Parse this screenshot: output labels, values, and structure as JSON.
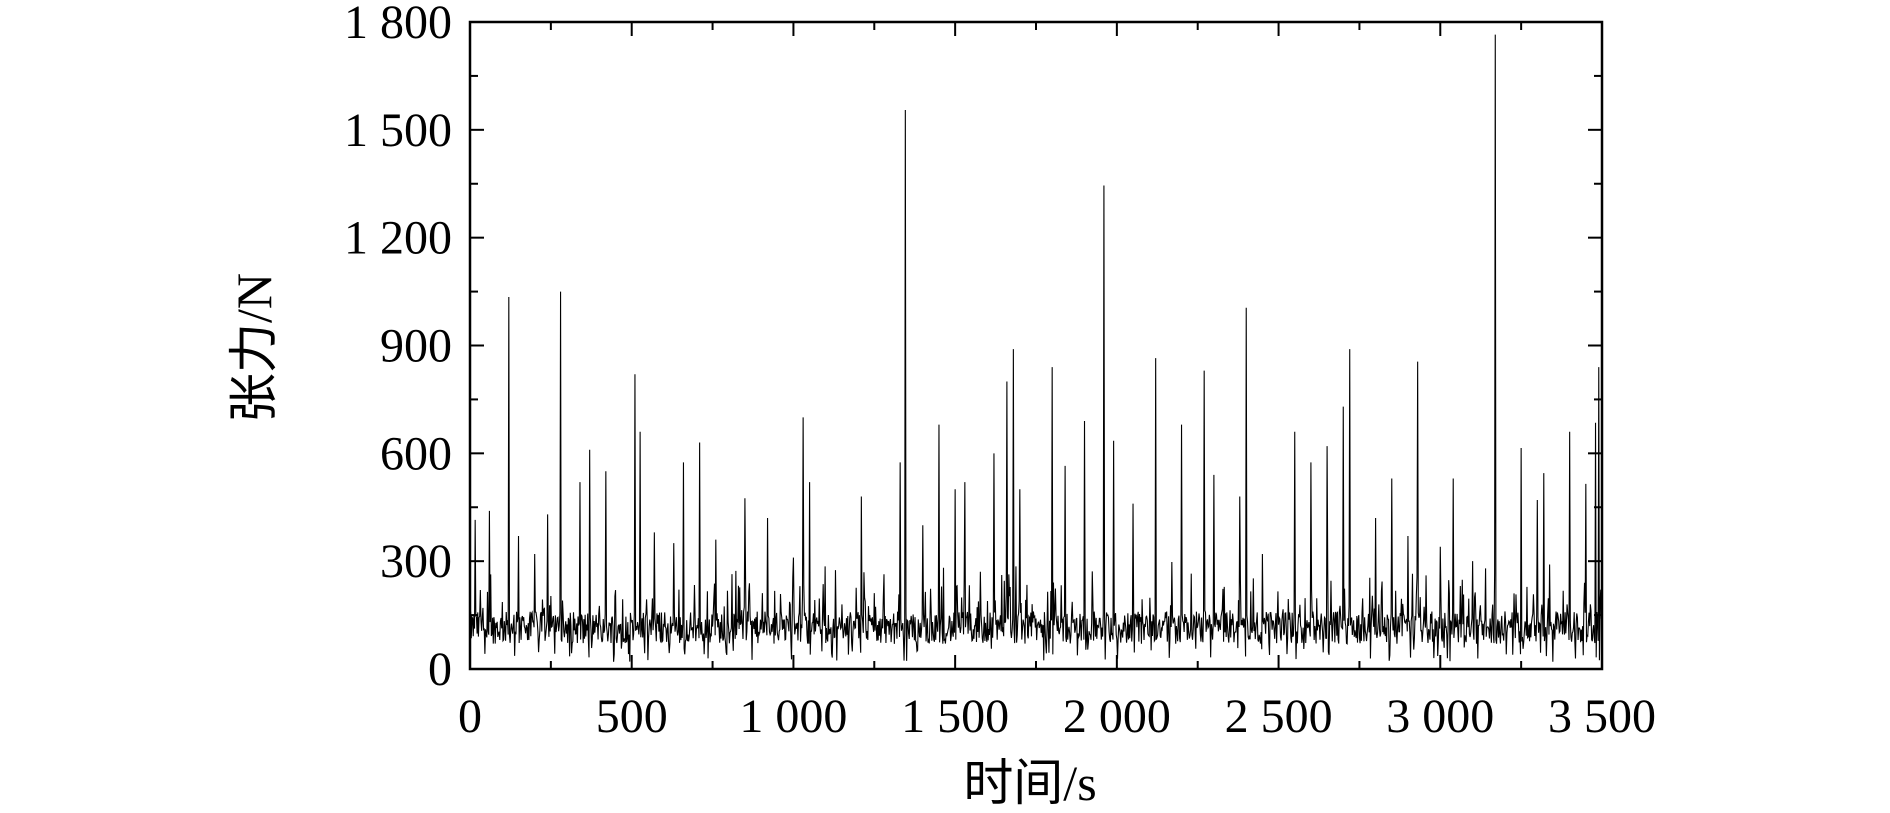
{
  "chart_data": {
    "type": "line",
    "xlabel": "时间/s",
    "ylabel": "张力/N",
    "xlim": [
      0,
      3500
    ],
    "ylim": [
      0,
      1800
    ],
    "x_ticks": [
      0,
      500,
      1000,
      1500,
      2000,
      2500,
      3000,
      3500
    ],
    "x_tick_labels": [
      "0",
      "500",
      "1 000",
      "1 500",
      "2 000",
      "2 500",
      "3 000",
      "3 500"
    ],
    "y_ticks": [
      0,
      300,
      600,
      900,
      1200,
      1500,
      1800
    ],
    "y_tick_labels": [
      "0",
      "300",
      "600",
      "900",
      "1 200",
      "1 500",
      "1 800"
    ],
    "grid": false,
    "line_color": "#000000",
    "baseline": {
      "mean": 115,
      "spread": 45,
      "sample_interval_s": 2
    },
    "series": [
      {
        "values": [
          [
            15,
            415
          ],
          [
            60,
            440
          ],
          [
            120,
            1035
          ],
          [
            150,
            370
          ],
          [
            200,
            320
          ],
          [
            240,
            430
          ],
          [
            280,
            1050
          ],
          [
            340,
            520
          ],
          [
            370,
            610
          ],
          [
            420,
            550
          ],
          [
            510,
            820
          ],
          [
            525,
            660
          ],
          [
            570,
            380
          ],
          [
            630,
            350
          ],
          [
            660,
            575
          ],
          [
            710,
            630
          ],
          [
            760,
            360
          ],
          [
            850,
            475
          ],
          [
            920,
            420
          ],
          [
            1000,
            310
          ],
          [
            1030,
            700
          ],
          [
            1050,
            520
          ],
          [
            1130,
            275
          ],
          [
            1210,
            480
          ],
          [
            1330,
            575
          ],
          [
            1345,
            1555
          ],
          [
            1400,
            400
          ],
          [
            1450,
            680
          ],
          [
            1500,
            500
          ],
          [
            1530,
            520
          ],
          [
            1620,
            600
          ],
          [
            1660,
            800
          ],
          [
            1680,
            890
          ],
          [
            1700,
            500
          ],
          [
            1800,
            840
          ],
          [
            1840,
            565
          ],
          [
            1900,
            690
          ],
          [
            1960,
            1345
          ],
          [
            1990,
            635
          ],
          [
            2050,
            460
          ],
          [
            2120,
            865
          ],
          [
            2200,
            680
          ],
          [
            2270,
            830
          ],
          [
            2300,
            540
          ],
          [
            2380,
            480
          ],
          [
            2400,
            1005
          ],
          [
            2450,
            320
          ],
          [
            2550,
            660
          ],
          [
            2600,
            575
          ],
          [
            2650,
            620
          ],
          [
            2700,
            730
          ],
          [
            2720,
            890
          ],
          [
            2800,
            420
          ],
          [
            2850,
            530
          ],
          [
            2900,
            370
          ],
          [
            2930,
            855
          ],
          [
            3000,
            340
          ],
          [
            3040,
            530
          ],
          [
            3100,
            300
          ],
          [
            3140,
            280
          ],
          [
            3170,
            1765
          ],
          [
            3250,
            615
          ],
          [
            3300,
            470
          ],
          [
            3320,
            545
          ],
          [
            3400,
            660
          ],
          [
            3450,
            515
          ],
          [
            3480,
            685
          ],
          [
            3490,
            840
          ],
          [
            3500,
            370
          ]
        ]
      }
    ]
  }
}
